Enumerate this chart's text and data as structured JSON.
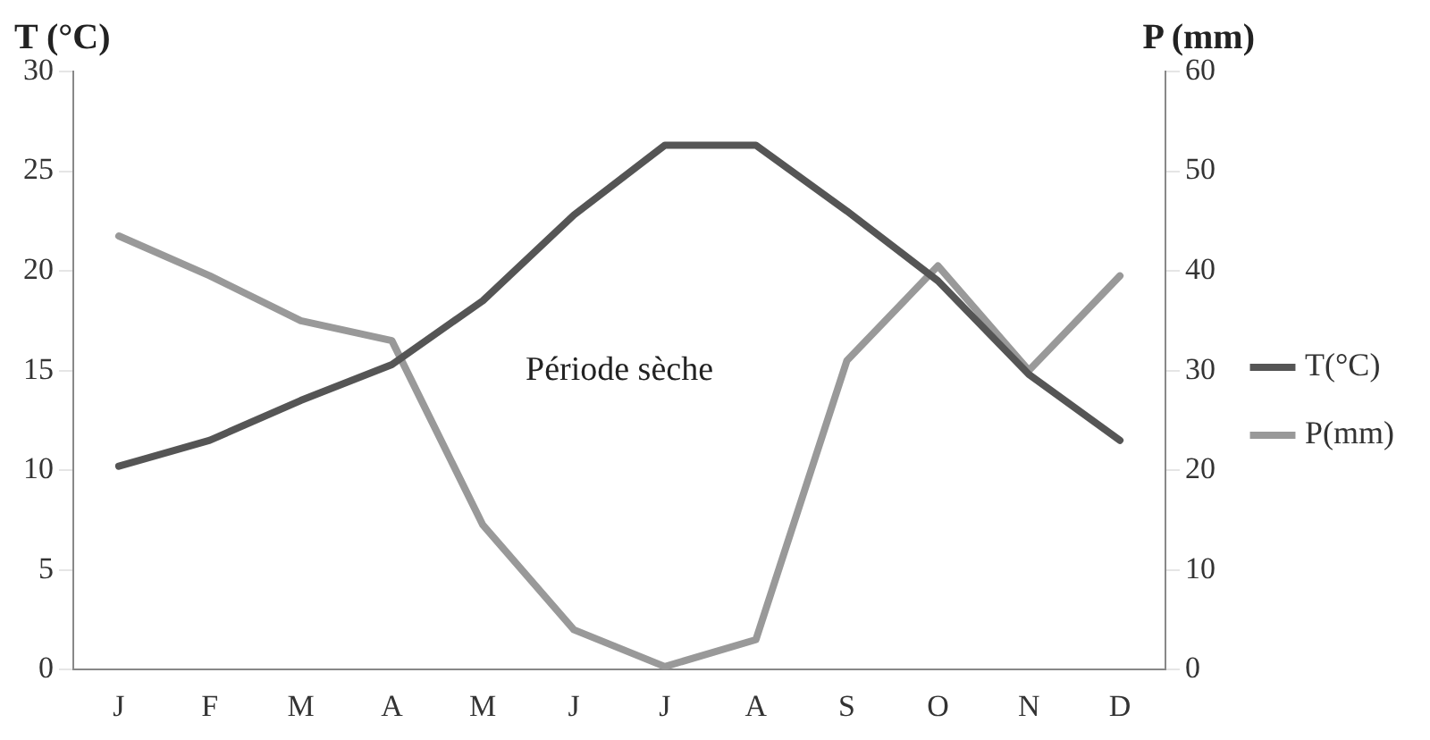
{
  "chart_data": {
    "type": "line",
    "ylabel": "T (°C)",
    "y2label": "P (mm)",
    "categories": [
      "J",
      "F",
      "M",
      "A",
      "M",
      "J",
      "J",
      "A",
      "S",
      "O",
      "N",
      "D"
    ],
    "series": [
      {
        "name": "T(°C)",
        "color": "#555555",
        "values": [
          10.2,
          11.5,
          13.5,
          15.3,
          18.5,
          22.8,
          26.3,
          26.3,
          23,
          19.5,
          14.8,
          11.5
        ]
      },
      {
        "name": "P(mm)",
        "color": "#999999",
        "axis": "y2",
        "values": [
          43.5,
          39.5,
          35,
          33,
          14.5,
          4,
          0.3,
          3,
          31,
          40.5,
          30,
          39.5
        ]
      }
    ],
    "ylim": [
      0,
      30
    ],
    "yticks": [
      0,
      5,
      10,
      15,
      20,
      25,
      30
    ],
    "y2lim": [
      0,
      60
    ],
    "y2ticks": [
      0,
      10,
      20,
      30,
      40,
      50,
      60
    ],
    "annotations": [
      "Période sèche"
    ],
    "legend": "right",
    "grid": false,
    "marker": "none",
    "line_style": "solid"
  }
}
